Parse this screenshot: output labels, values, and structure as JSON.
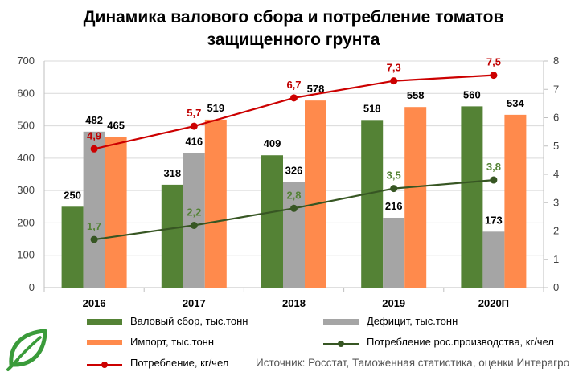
{
  "chart_data": {
    "type": "bar",
    "title": "Динамика валового сбора и потребление томатов защищенного грунта",
    "categories": [
      "2016",
      "2017",
      "2018",
      "2019",
      "2020П"
    ],
    "ylim_left": [
      0,
      700
    ],
    "yticks_left": [
      "0",
      "100",
      "200",
      "300",
      "400",
      "500",
      "600",
      "700"
    ],
    "ylim_right": [
      0,
      8
    ],
    "yticks_right": [
      "0",
      "1",
      "2",
      "3",
      "4",
      "5",
      "6",
      "7",
      "8"
    ],
    "grid": true,
    "legend_position": "bottom",
    "bar_series": [
      {
        "name": "Валовый сбор, тыс.тонн",
        "color": "#548235",
        "values": [
          250,
          318,
          409,
          518,
          560
        ],
        "labels": [
          "250",
          "318",
          "409",
          "518",
          "560"
        ]
      },
      {
        "name": "Дефицит, тыс.тонн",
        "color": "#a5a5a5",
        "values": [
          482,
          416,
          326,
          216,
          173
        ],
        "labels": [
          "482",
          "416",
          "326",
          "216",
          "173"
        ]
      },
      {
        "name": "Импорт, тыс.тонн",
        "color": "#ff8a4c",
        "values": [
          465,
          519,
          578,
          558,
          534
        ],
        "labels": [
          "465",
          "519",
          "578",
          "558",
          "534"
        ]
      }
    ],
    "line_series": [
      {
        "name": "Потребление рос.производства, кг/чел",
        "color": "#375623",
        "label_color": "#548235",
        "axis": "right",
        "values": [
          1.7,
          2.2,
          2.8,
          3.5,
          3.8
        ],
        "labels": [
          "1,7",
          "2,2",
          "2,8",
          "3,5",
          "3,8"
        ]
      },
      {
        "name": "Потребление, кг/чел",
        "color": "#cc0000",
        "label_color": "#c00000",
        "axis": "right",
        "values": [
          4.9,
          5.7,
          6.7,
          7.3,
          7.5
        ],
        "labels": [
          "4,9",
          "5,7",
          "6,7",
          "7,3",
          "7,5"
        ]
      }
    ]
  },
  "source": "Источник: Росстат, Таможенная статистика, оценки Интерагро",
  "logo": "leaf-logo"
}
